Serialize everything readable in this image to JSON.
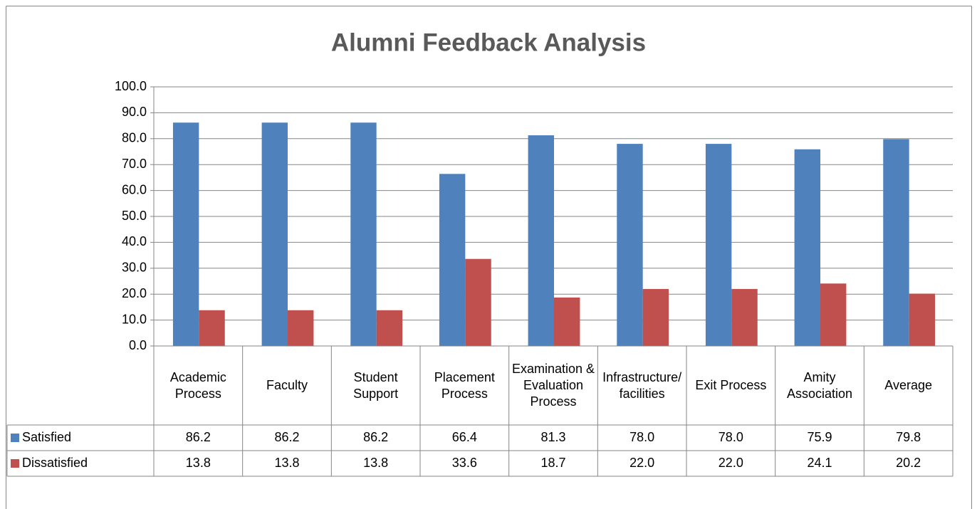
{
  "chart_data": {
    "type": "bar",
    "title": "Alumni Feedback Analysis",
    "categories": [
      "Academic Process",
      "Faculty",
      "Student Support",
      "Placement Process",
      "Examination & Evaluation Process",
      "Infrastructure/ facilities",
      "Exit Process",
      "Amity Association",
      "Average"
    ],
    "series": [
      {
        "name": "Satisfied",
        "color": "#4f81bd",
        "values": [
          86.2,
          86.2,
          86.2,
          66.4,
          81.3,
          78,
          78,
          75.9,
          79.8
        ],
        "value_labels": [
          "86.2",
          "86.2",
          "86.2",
          "66.4",
          "81.3",
          "78.0",
          "78.0",
          "75.9",
          "79.8"
        ]
      },
      {
        "name": "Dissatisfied",
        "color": "#c0504d",
        "values": [
          13.8,
          13.8,
          13.8,
          33.6,
          18.7,
          22,
          22,
          24.1,
          20.2
        ],
        "value_labels": [
          "13.8",
          "13.8",
          "13.8",
          "33.6",
          "18.7",
          "22.0",
          "22.0",
          "24.1",
          "20.2"
        ]
      }
    ],
    "ylim": [
      0,
      100
    ],
    "yticks": [
      {
        "value": 0,
        "label": "0.0"
      },
      {
        "value": 10,
        "label": "10.0"
      },
      {
        "value": 20,
        "label": "20.0"
      },
      {
        "value": 30,
        "label": "30.0"
      },
      {
        "value": 40,
        "label": "40.0"
      },
      {
        "value": 50,
        "label": "50.0"
      },
      {
        "value": 60,
        "label": "60.0"
      },
      {
        "value": 70,
        "label": "70.0"
      },
      {
        "value": 80,
        "label": "80.0"
      },
      {
        "value": 90,
        "label": "90.0"
      },
      {
        "value": 100,
        "label": "100.0"
      }
    ],
    "grid": true,
    "data_table": true
  }
}
